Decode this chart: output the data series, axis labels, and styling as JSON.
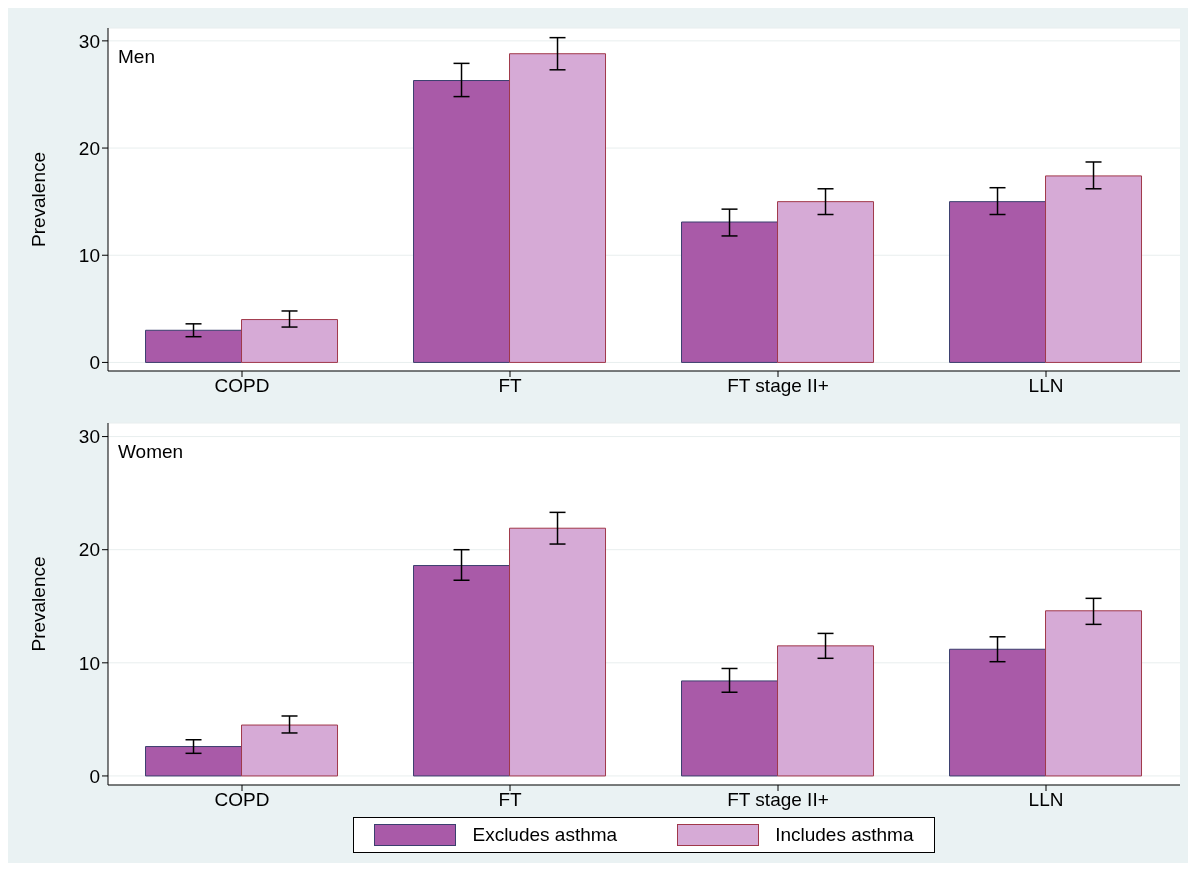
{
  "chart_data": [
    {
      "type": "bar",
      "ylabel": "Prevalence",
      "annotations": [
        "Men"
      ],
      "categories": [
        "COPD",
        "FT",
        "FT stage II+",
        "LLN"
      ],
      "ylim": [
        -0.8,
        31.2
      ],
      "yticks": [
        0,
        10,
        20,
        30
      ],
      "grid": "y",
      "legend": false,
      "series": [
        {
          "color": "#a95aa8",
          "values": [
            3.0,
            26.3,
            13.1,
            15.0
          ],
          "errors": [
            [
              2.4,
              3.6
            ],
            [
              24.8,
              27.9
            ],
            [
              11.8,
              14.3
            ],
            [
              13.8,
              16.3
            ]
          ]
        },
        {
          "color": "#d6aad6",
          "values": [
            4.0,
            28.8,
            15.0,
            17.4
          ],
          "errors": [
            [
              3.3,
              4.8
            ],
            [
              27.3,
              30.3
            ],
            [
              13.8,
              16.2
            ],
            [
              16.2,
              18.7
            ]
          ]
        }
      ]
    },
    {
      "type": "bar",
      "ylabel": "Prevalence",
      "annotations": [
        "Women"
      ],
      "categories": [
        "COPD",
        "FT",
        "FT stage II+",
        "LLN"
      ],
      "ylim": [
        -0.8,
        31.2
      ],
      "yticks": [
        0,
        10,
        20,
        30
      ],
      "grid": "y",
      "legend": "bottom",
      "series": [
        {
          "name": "Excludes asthma",
          "color": "#a95aa8",
          "values": [
            2.6,
            18.6,
            8.4,
            11.2
          ],
          "errors": [
            [
              2.0,
              3.2
            ],
            [
              17.3,
              20.0
            ],
            [
              7.4,
              9.5
            ],
            [
              10.1,
              12.3
            ]
          ]
        },
        {
          "name": "Includes asthma",
          "color": "#d6aad6",
          "values": [
            4.5,
            21.9,
            11.5,
            14.6
          ],
          "errors": [
            [
              3.8,
              5.3
            ],
            [
              20.5,
              23.3
            ],
            [
              10.4,
              12.6
            ],
            [
              13.4,
              15.7
            ]
          ]
        }
      ]
    }
  ]
}
